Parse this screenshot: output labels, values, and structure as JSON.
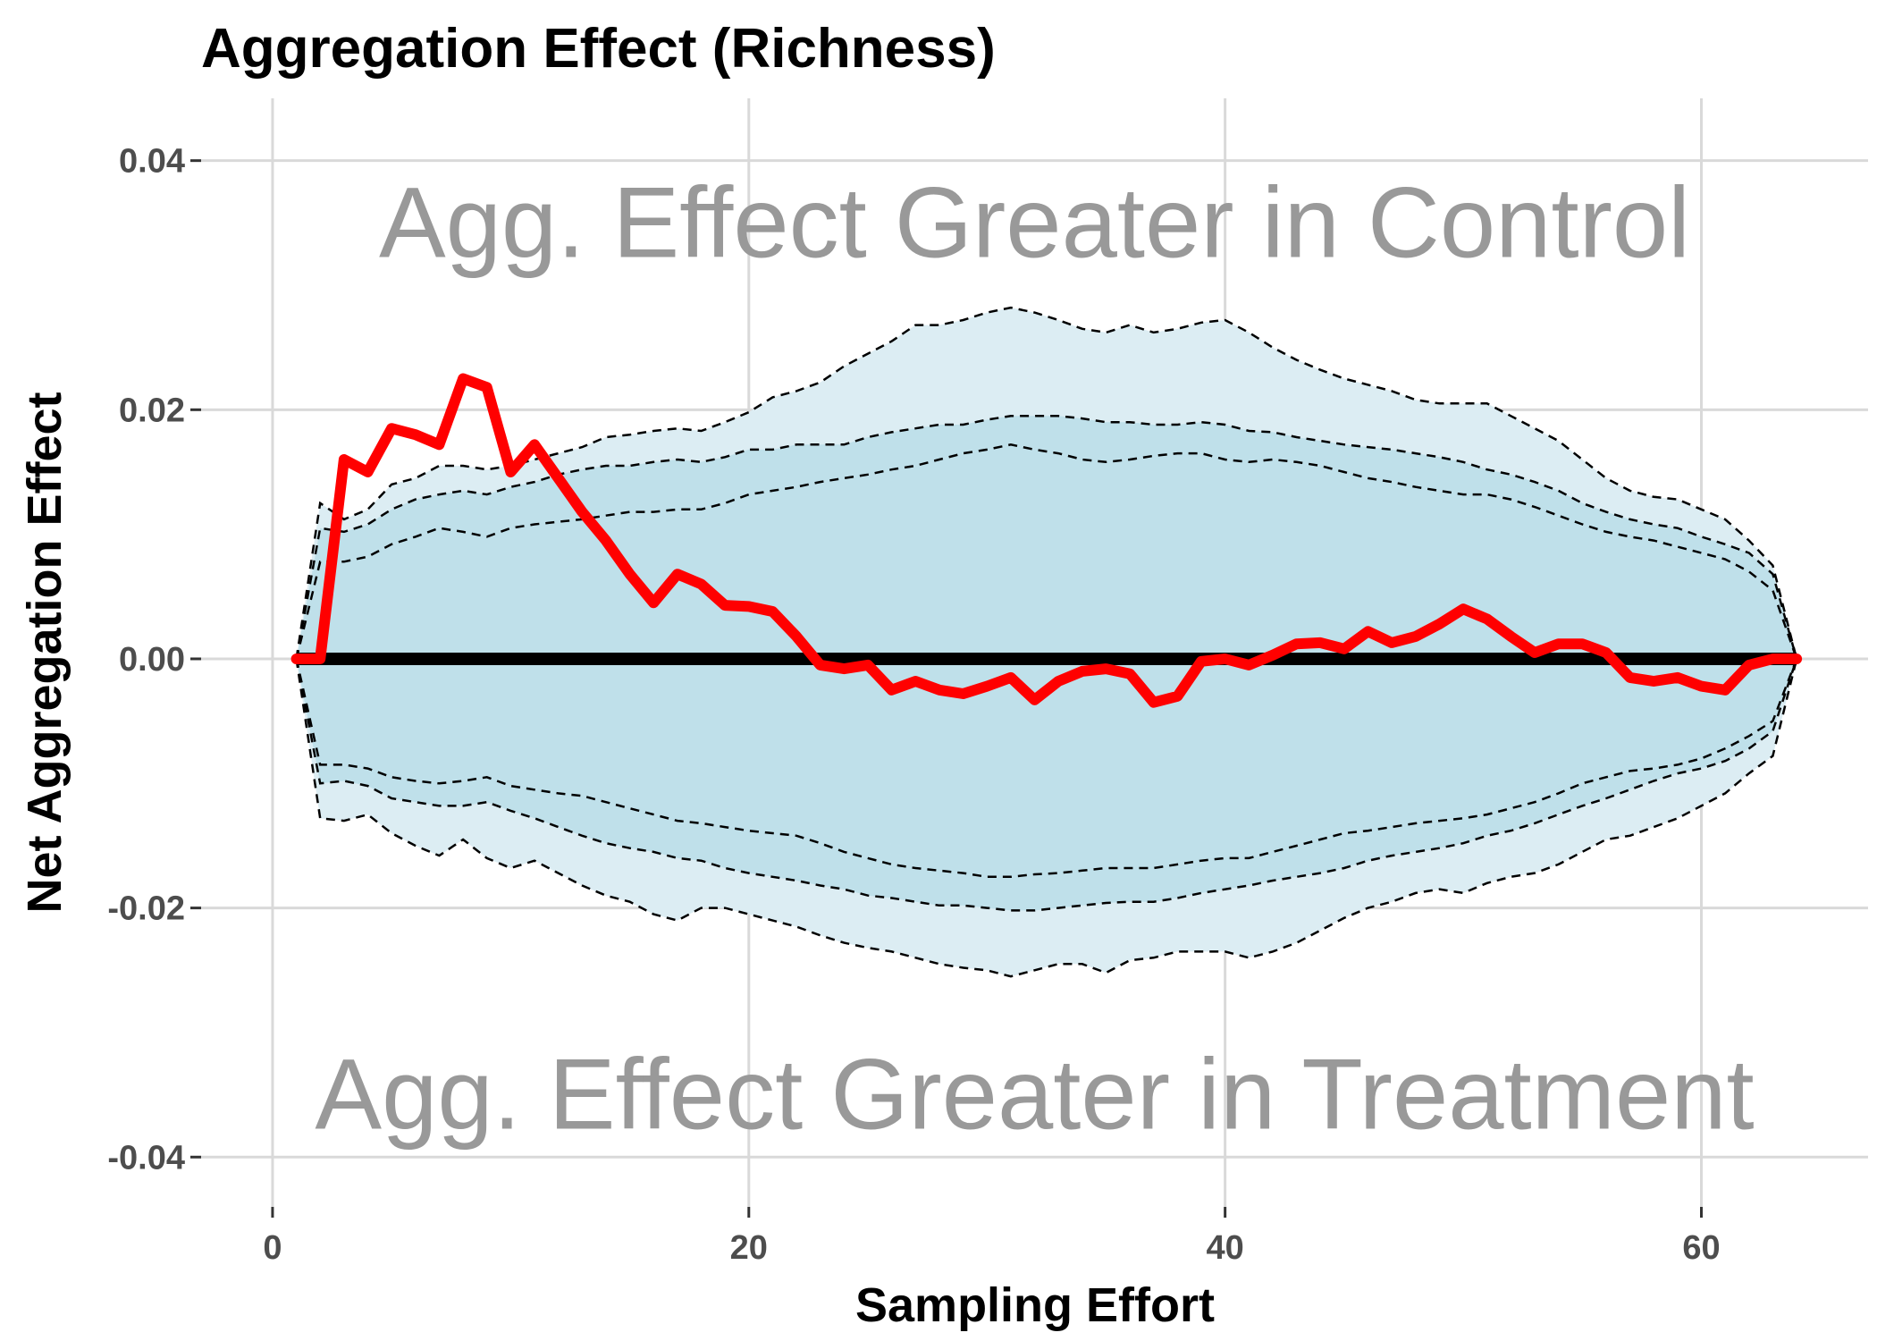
{
  "chart_data": {
    "type": "line",
    "title": "Aggregation Effect (Richness)",
    "xlabel": "Sampling Effort",
    "ylabel": "Net Aggregation Effect",
    "xlim": [
      -3,
      67
    ],
    "ylim": [
      -0.044,
      0.045
    ],
    "x_ticks": [
      0,
      20,
      40,
      60
    ],
    "x_tick_labels": [
      "0",
      "20",
      "40",
      "60"
    ],
    "y_ticks": [
      0.04,
      0.02,
      0.0,
      -0.02,
      -0.04
    ],
    "y_tick_labels": [
      "0.04",
      "0.02",
      "0.00",
      "-0.02",
      "-0.04"
    ],
    "grid": true,
    "annotations": [
      {
        "text": "Agg. Effect Greater in Control",
        "x": 32,
        "y": 0.035
      },
      {
        "text": "Agg. Effect Greater in Treatment",
        "x": 32,
        "y": -0.035
      }
    ],
    "colors": {
      "observed": "#ff0000",
      "zero_line": "#000000",
      "outer_band": "#dcedf3",
      "inner_band": "#bfe0ea",
      "envelope_lines": "#000000",
      "annotation": "#999999"
    },
    "zero_line": 0,
    "series": [
      {
        "x": [
          1,
          2,
          3,
          4,
          5,
          6,
          7,
          8,
          9,
          10,
          11,
          12,
          13,
          14,
          15,
          16,
          17,
          18,
          19,
          20,
          21,
          22,
          23,
          24,
          25,
          26,
          27,
          28,
          29,
          30,
          31,
          32,
          33,
          34,
          35,
          36,
          37,
          38,
          39,
          40,
          41,
          42,
          43,
          44,
          45,
          46,
          47,
          48,
          49,
          50,
          51,
          52,
          53,
          54,
          55,
          56,
          57,
          58,
          59,
          60,
          61,
          62,
          63,
          64
        ],
        "y": [
          0.0,
          0.0,
          0.016,
          0.015,
          0.0185,
          0.018,
          0.0172,
          0.0225,
          0.0218,
          0.015,
          0.0172,
          0.0145,
          0.0118,
          0.0095,
          0.0068,
          0.0045,
          0.0068,
          0.006,
          0.0043,
          0.0042,
          0.0038,
          0.0018,
          -0.0005,
          -0.0008,
          -0.0005,
          -0.0025,
          -0.0018,
          -0.0025,
          -0.0028,
          -0.0022,
          -0.0015,
          -0.0033,
          -0.0018,
          -0.001,
          -0.0008,
          -0.0012,
          -0.0035,
          -0.003,
          -0.0002,
          0.0,
          -0.0005,
          0.0003,
          0.0012,
          0.0013,
          0.0008,
          0.0022,
          0.0013,
          0.0018,
          0.0028,
          0.004,
          0.0032,
          0.0018,
          0.0005,
          0.0012,
          0.0012,
          0.0005,
          -0.0015,
          -0.0018,
          -0.0015,
          -0.0022,
          -0.0025,
          -0.0005,
          0.0,
          0.0
        ]
      }
    ],
    "bands": {
      "x": [
        1,
        2,
        3,
        4,
        5,
        6,
        7,
        8,
        9,
        10,
        11,
        12,
        13,
        14,
        15,
        16,
        17,
        18,
        19,
        20,
        21,
        22,
        23,
        24,
        25,
        26,
        27,
        28,
        29,
        30,
        31,
        32,
        33,
        34,
        35,
        36,
        37,
        38,
        39,
        40,
        41,
        42,
        43,
        44,
        45,
        46,
        47,
        48,
        49,
        50,
        51,
        52,
        53,
        54,
        55,
        56,
        57,
        58,
        59,
        60,
        61,
        62,
        63,
        64
      ],
      "outer_upper": [
        0.0,
        0.0125,
        0.0112,
        0.012,
        0.014,
        0.0145,
        0.0155,
        0.0155,
        0.0152,
        0.0155,
        0.016,
        0.0165,
        0.017,
        0.0178,
        0.018,
        0.0183,
        0.0185,
        0.0183,
        0.019,
        0.0198,
        0.021,
        0.0215,
        0.0222,
        0.0235,
        0.0245,
        0.0255,
        0.0268,
        0.0268,
        0.0272,
        0.0278,
        0.0282,
        0.0278,
        0.0272,
        0.0265,
        0.0262,
        0.0268,
        0.0262,
        0.0265,
        0.027,
        0.0272,
        0.0262,
        0.025,
        0.024,
        0.0232,
        0.0225,
        0.022,
        0.0215,
        0.0208,
        0.0205,
        0.0205,
        0.0205,
        0.0195,
        0.0185,
        0.0175,
        0.016,
        0.0145,
        0.0135,
        0.013,
        0.0128,
        0.012,
        0.0112,
        0.0095,
        0.0075,
        0.0
      ],
      "mid_upper": [
        0.0,
        0.0105,
        0.0102,
        0.0108,
        0.012,
        0.0128,
        0.0132,
        0.0135,
        0.0132,
        0.0138,
        0.0142,
        0.0148,
        0.0152,
        0.0155,
        0.0155,
        0.0158,
        0.016,
        0.0158,
        0.0162,
        0.0168,
        0.0168,
        0.0172,
        0.0172,
        0.0172,
        0.0178,
        0.0182,
        0.0185,
        0.0188,
        0.0188,
        0.0192,
        0.0195,
        0.0195,
        0.0195,
        0.0193,
        0.019,
        0.019,
        0.0188,
        0.0188,
        0.019,
        0.0188,
        0.0183,
        0.0182,
        0.0178,
        0.0175,
        0.0172,
        0.017,
        0.0168,
        0.0165,
        0.0162,
        0.0158,
        0.0152,
        0.0148,
        0.0142,
        0.0135,
        0.0125,
        0.0118,
        0.0112,
        0.0108,
        0.0105,
        0.0098,
        0.0092,
        0.0085,
        0.0068,
        0.0
      ],
      "inner_upper": [
        0.0,
        0.0078,
        0.0078,
        0.0082,
        0.0092,
        0.0098,
        0.0105,
        0.0102,
        0.0098,
        0.0105,
        0.0108,
        0.011,
        0.0112,
        0.0115,
        0.0118,
        0.0118,
        0.012,
        0.012,
        0.0125,
        0.0132,
        0.0135,
        0.0138,
        0.0142,
        0.0145,
        0.0148,
        0.0152,
        0.0155,
        0.016,
        0.0165,
        0.0168,
        0.0172,
        0.0168,
        0.0165,
        0.016,
        0.0158,
        0.016,
        0.0163,
        0.0165,
        0.0165,
        0.016,
        0.0158,
        0.016,
        0.0158,
        0.0155,
        0.015,
        0.0145,
        0.0142,
        0.0138,
        0.0135,
        0.0132,
        0.0132,
        0.0128,
        0.0122,
        0.0115,
        0.0108,
        0.0102,
        0.0098,
        0.0095,
        0.009,
        0.0085,
        0.008,
        0.007,
        0.0055,
        0.0
      ],
      "inner_lower": [
        0.0,
        -0.0085,
        -0.0085,
        -0.0088,
        -0.0095,
        -0.0098,
        -0.01,
        -0.0098,
        -0.0095,
        -0.0102,
        -0.0105,
        -0.0108,
        -0.011,
        -0.0115,
        -0.012,
        -0.0125,
        -0.013,
        -0.0132,
        -0.0135,
        -0.0138,
        -0.014,
        -0.0142,
        -0.0148,
        -0.0155,
        -0.016,
        -0.0165,
        -0.0168,
        -0.017,
        -0.0172,
        -0.0175,
        -0.0175,
        -0.0173,
        -0.0172,
        -0.017,
        -0.0168,
        -0.0168,
        -0.0168,
        -0.0165,
        -0.0162,
        -0.016,
        -0.016,
        -0.0155,
        -0.015,
        -0.0145,
        -0.014,
        -0.0138,
        -0.0135,
        -0.0132,
        -0.013,
        -0.0128,
        -0.0125,
        -0.012,
        -0.0115,
        -0.0108,
        -0.01,
        -0.0095,
        -0.009,
        -0.0088,
        -0.0085,
        -0.008,
        -0.0072,
        -0.0062,
        -0.005,
        0.0
      ],
      "mid_lower": [
        0.0,
        -0.01,
        -0.0098,
        -0.0102,
        -0.0112,
        -0.0115,
        -0.0118,
        -0.0118,
        -0.0115,
        -0.0122,
        -0.0128,
        -0.0135,
        -0.0142,
        -0.0148,
        -0.0152,
        -0.0155,
        -0.016,
        -0.0162,
        -0.0168,
        -0.0172,
        -0.0175,
        -0.0178,
        -0.0182,
        -0.0185,
        -0.019,
        -0.0192,
        -0.0195,
        -0.0198,
        -0.0198,
        -0.02,
        -0.0202,
        -0.0202,
        -0.02,
        -0.0198,
        -0.0196,
        -0.0195,
        -0.0195,
        -0.0192,
        -0.0188,
        -0.0185,
        -0.0182,
        -0.0178,
        -0.0175,
        -0.0172,
        -0.0168,
        -0.0162,
        -0.0158,
        -0.0155,
        -0.0152,
        -0.0148,
        -0.0142,
        -0.0138,
        -0.0132,
        -0.0125,
        -0.0118,
        -0.0112,
        -0.0105,
        -0.0098,
        -0.0092,
        -0.0088,
        -0.0082,
        -0.0072,
        -0.0058,
        0.0
      ],
      "outer_lower": [
        0.0,
        -0.0128,
        -0.013,
        -0.0125,
        -0.014,
        -0.015,
        -0.0158,
        -0.0145,
        -0.016,
        -0.0168,
        -0.0162,
        -0.0172,
        -0.0182,
        -0.019,
        -0.0195,
        -0.0205,
        -0.021,
        -0.02,
        -0.02,
        -0.0205,
        -0.021,
        -0.0215,
        -0.0222,
        -0.0228,
        -0.0232,
        -0.0235,
        -0.024,
        -0.0245,
        -0.0248,
        -0.025,
        -0.0255,
        -0.025,
        -0.0245,
        -0.0245,
        -0.0252,
        -0.0242,
        -0.024,
        -0.0235,
        -0.0235,
        -0.0235,
        -0.024,
        -0.0235,
        -0.0228,
        -0.0218,
        -0.0208,
        -0.02,
        -0.0195,
        -0.0188,
        -0.0185,
        -0.0188,
        -0.018,
        -0.0175,
        -0.0172,
        -0.0165,
        -0.0155,
        -0.0145,
        -0.0142,
        -0.0135,
        -0.0128,
        -0.0118,
        -0.0108,
        -0.0092,
        -0.0078,
        0.0
      ]
    }
  }
}
